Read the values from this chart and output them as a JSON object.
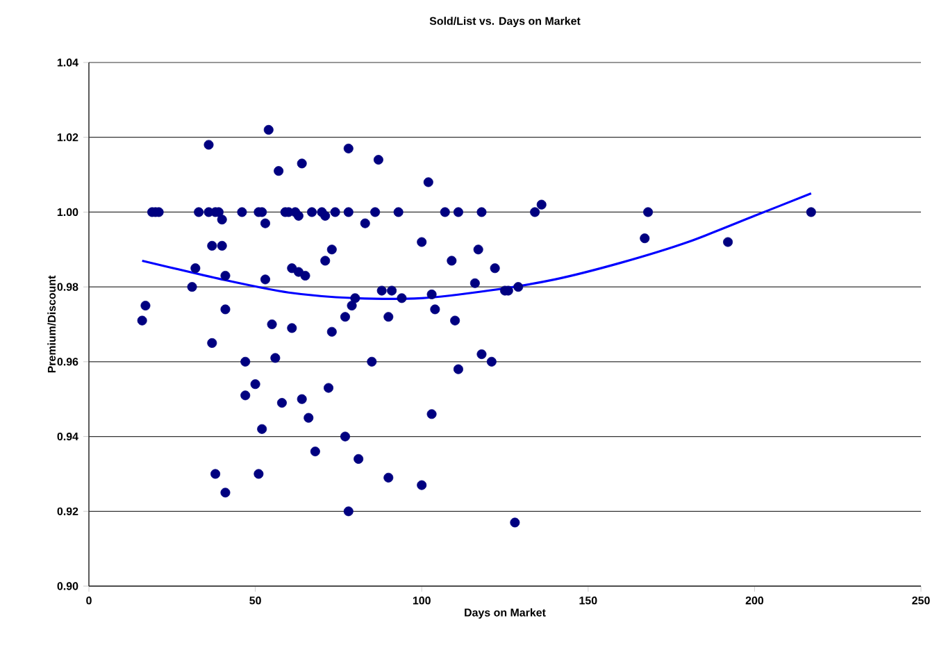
{
  "chart_data": {
    "type": "scatter",
    "title": "Sold/List vs. Days on Market",
    "xlabel": "Days on Market",
    "ylabel": "Premium/Discount",
    "xlim": [
      0,
      250
    ],
    "xticks": [
      0,
      50,
      100,
      150,
      200,
      250
    ],
    "ylim": [
      0.9,
      1.04
    ],
    "yticks": [
      {
        "value": 0.9,
        "label": "0.90"
      },
      0.92,
      0.94,
      0.96,
      0.98,
      {
        "value": 1.0,
        "label": "1.00"
      },
      1.02,
      1.04
    ],
    "grid": "y",
    "series": [
      {
        "color": "#000080",
        "marker": "circle",
        "x": [
          16,
          17,
          19,
          20,
          21,
          31,
          32,
          33,
          36,
          36,
          37,
          37,
          38,
          38,
          39,
          40,
          40,
          41,
          41,
          41,
          46,
          47,
          47,
          50,
          51,
          51,
          52,
          52,
          53,
          53,
          54,
          55,
          56,
          57,
          58,
          59,
          60,
          61,
          61,
          62,
          63,
          63,
          64,
          64,
          65,
          66,
          67,
          68,
          70,
          71,
          71,
          72,
          73,
          73,
          74,
          77,
          77,
          78,
          78,
          78,
          79,
          80,
          81,
          83,
          85,
          86,
          87,
          88,
          90,
          90,
          91,
          93,
          94,
          100,
          100,
          102,
          103,
          103,
          104,
          107,
          109,
          110,
          111,
          111,
          116,
          117,
          118,
          118,
          121,
          122,
          125,
          126,
          128,
          129,
          134,
          136,
          167,
          168,
          192,
          217
        ],
        "values": [
          0.971,
          0.975,
          1.0,
          1.0,
          1.0,
          0.98,
          0.985,
          1.0,
          1.018,
          1.0,
          0.965,
          0.991,
          1.0,
          0.93,
          1.0,
          0.998,
          0.991,
          0.983,
          0.974,
          0.925,
          1.0,
          0.951,
          0.96,
          0.954,
          1.0,
          0.93,
          1.0,
          0.942,
          0.997,
          0.982,
          1.022,
          0.97,
          0.961,
          1.011,
          0.949,
          1.0,
          1.0,
          0.969,
          0.985,
          1.0,
          0.999,
          0.984,
          1.013,
          0.95,
          0.983,
          0.945,
          1.0,
          0.936,
          1.0,
          0.999,
          0.987,
          0.953,
          0.968,
          0.99,
          1.0,
          0.972,
          0.94,
          1.0,
          1.017,
          0.92,
          0.975,
          0.977,
          0.934,
          0.997,
          0.96,
          1.0,
          1.014,
          0.979,
          0.929,
          0.972,
          0.979,
          1.0,
          0.977,
          0.992,
          0.927,
          1.008,
          0.978,
          0.946,
          0.974,
          1.0,
          0.987,
          0.971,
          1.0,
          0.958,
          0.981,
          0.99,
          1.0,
          0.962,
          0.96,
          0.985,
          0.979,
          0.979,
          0.917,
          0.98,
          1.0,
          1.002,
          0.993,
          1.0,
          0.992,
          1.0
        ]
      },
      {
        "type": "line",
        "color": "#0000ff",
        "x": [
          16,
          40,
          60,
          80,
          100,
          120,
          140,
          160,
          180,
          200,
          217
        ],
        "values": [
          0.987,
          0.982,
          0.9785,
          0.977,
          0.977,
          0.979,
          0.982,
          0.9865,
          0.992,
          0.999,
          1.005
        ]
      }
    ]
  }
}
